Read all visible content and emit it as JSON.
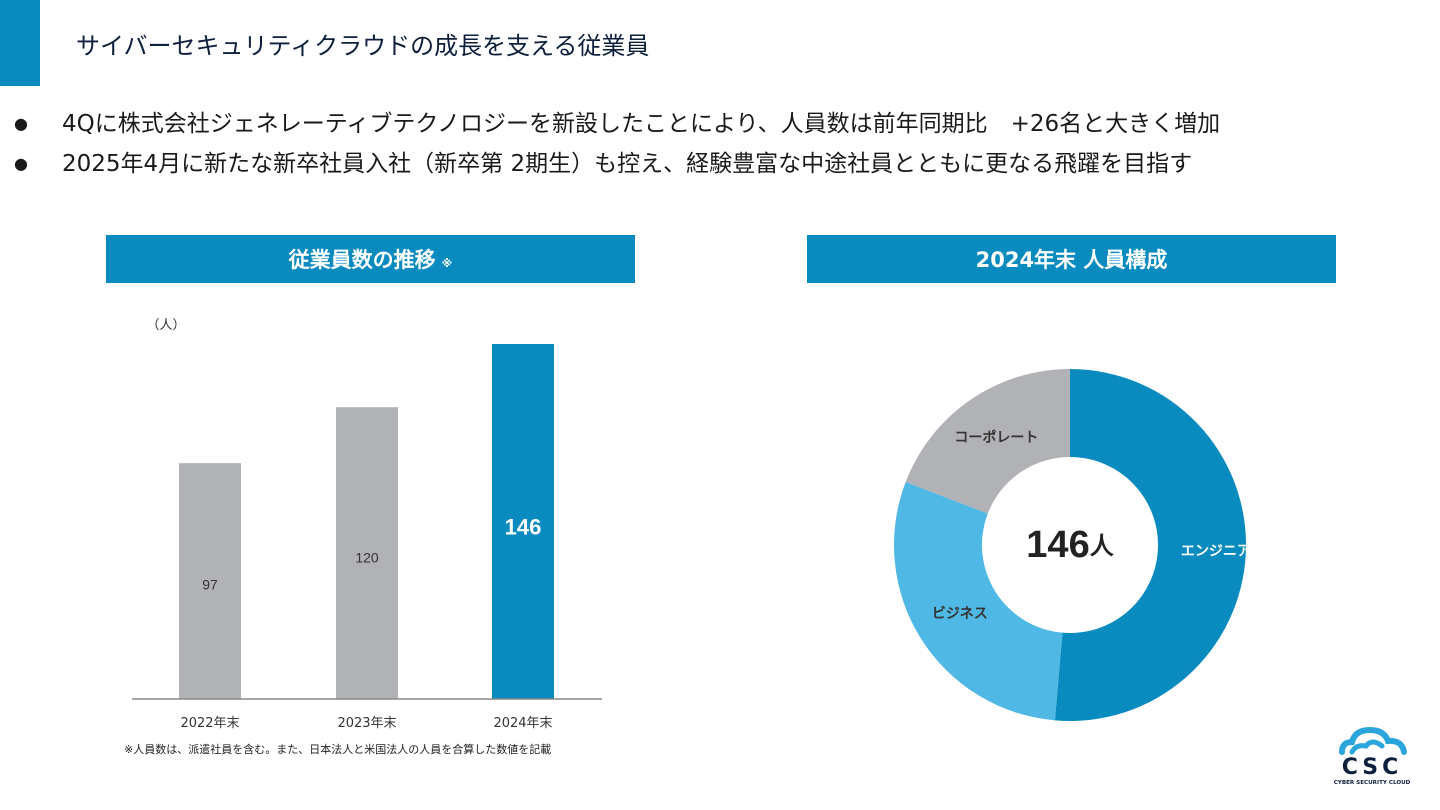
{
  "title": "サイバーセキュリティクラウドの成長を支える従業員",
  "bullets": [
    "4Qに株式会社ジェネレーティブテクノロジーを新設したことにより、人員数は前年同期比　+26名と大きく増加",
    "2025年4月に新たな新卒社員入社（新卒第 2期生）も控え、経験豊富な中途社員とともに更なる飛躍を目指す"
  ],
  "bullet_marker": "●",
  "colors": {
    "accent": "#0a8bbf",
    "gray_bar": "#b1b2b6",
    "engineer": "#0a8bbf",
    "business": "#4fb8e4",
    "corporate": "#b1b2b6"
  },
  "footnote": "※人員数は、派遣社員を含む。また、日本法人と米国法人の人員を合算した数値を記載",
  "logo": {
    "text": "CSC",
    "subtitle": "CYBER SECURITY CLOUD"
  },
  "chart_data": [
    {
      "type": "bar",
      "title": "従業員数の推移",
      "title_note": "※",
      "ylabel": "（人）",
      "categories": [
        "2022年末",
        "2023年末",
        "2024年末"
      ],
      "values": [
        97,
        120,
        146
      ],
      "value_labels": [
        "97",
        "120",
        "146"
      ],
      "bar_colors": [
        "#b1b2b6",
        "#b1b2b6",
        "#0a8bbf"
      ],
      "ylim": [
        0,
        146
      ],
      "grid": false
    },
    {
      "type": "pie",
      "title": "2024年末 人員構成",
      "center_value": "146",
      "center_unit": "人",
      "categories": [
        "エンジニア",
        "ビジネス",
        "コーポレート"
      ],
      "values": [
        75,
        43,
        28
      ],
      "colors": [
        "#0a8bbf",
        "#4fb8e4",
        "#b1b2b6"
      ]
    }
  ]
}
